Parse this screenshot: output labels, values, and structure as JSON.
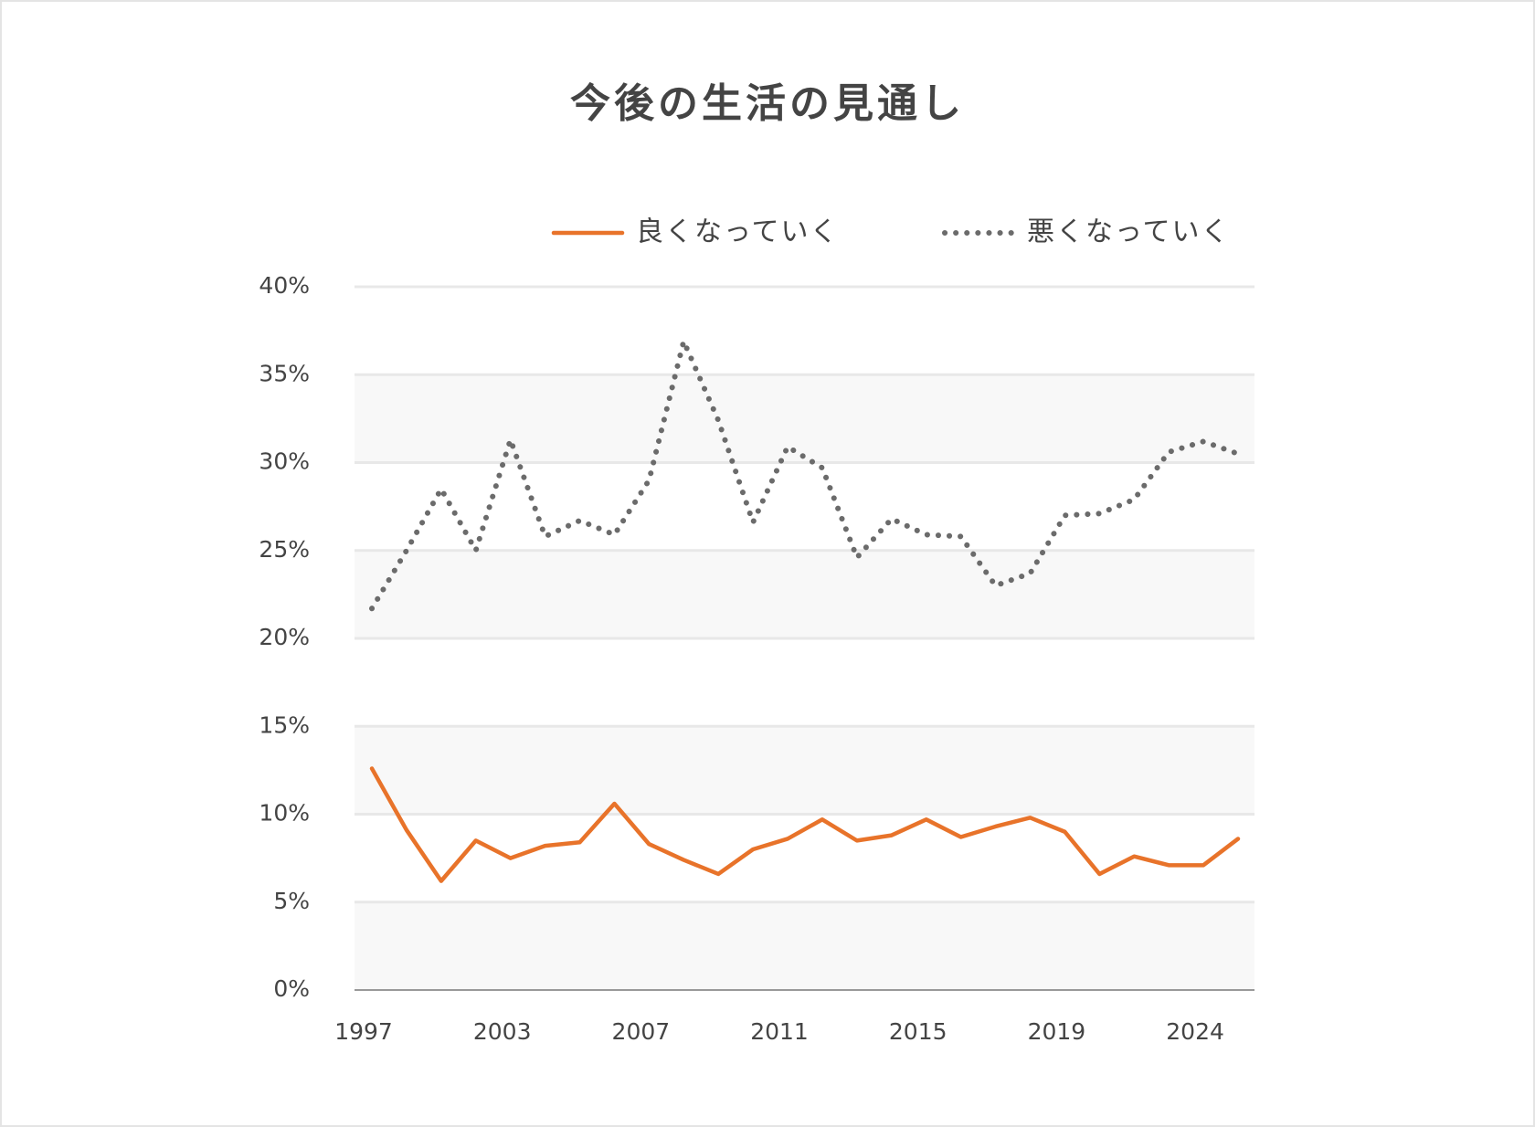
{
  "chart_data": {
    "type": "line",
    "title": "今後の生活の見通し",
    "categories": [
      "1997",
      null,
      null,
      null,
      "2003",
      null,
      null,
      null,
      "2007",
      null,
      null,
      null,
      "2011",
      null,
      null,
      null,
      "2015",
      null,
      null,
      null,
      "2019",
      null,
      null,
      null,
      "2024",
      null
    ],
    "series": [
      {
        "name": "良くなっていく",
        "color": "#e8732a",
        "style": "solid",
        "values": [
          12.6,
          9.1,
          6.2,
          8.5,
          7.5,
          8.2,
          8.4,
          10.6,
          8.3,
          7.4,
          6.6,
          8.0,
          8.6,
          9.7,
          8.5,
          8.8,
          9.7,
          8.7,
          9.3,
          9.8,
          9.0,
          6.6,
          7.6,
          7.1,
          7.1,
          8.6
        ]
      },
      {
        "name": "悪くなっていく",
        "color": "#6b6b6b",
        "style": "dotted",
        "values": [
          21.7,
          25.0,
          28.5,
          25.0,
          31.3,
          25.8,
          26.7,
          25.9,
          29.0,
          36.9,
          32.4,
          26.6,
          30.9,
          29.7,
          24.6,
          26.8,
          25.9,
          25.8,
          23.0,
          23.7,
          27.0,
          27.1,
          27.9,
          30.6,
          31.2,
          30.5
        ]
      }
    ],
    "ylim": [
      0,
      40
    ],
    "yticks": [
      {
        "value": 0,
        "label": "0%"
      },
      {
        "value": 5,
        "label": "5%"
      },
      {
        "value": 10,
        "label": "10%"
      },
      {
        "value": 15,
        "label": "15%"
      },
      {
        "value": 20,
        "label": "20%"
      },
      {
        "value": 25,
        "label": "25%"
      },
      {
        "value": 30,
        "label": "30%"
      },
      {
        "value": 35,
        "label": "35%"
      },
      {
        "value": 40,
        "label": "40%"
      }
    ],
    "grid": true
  }
}
